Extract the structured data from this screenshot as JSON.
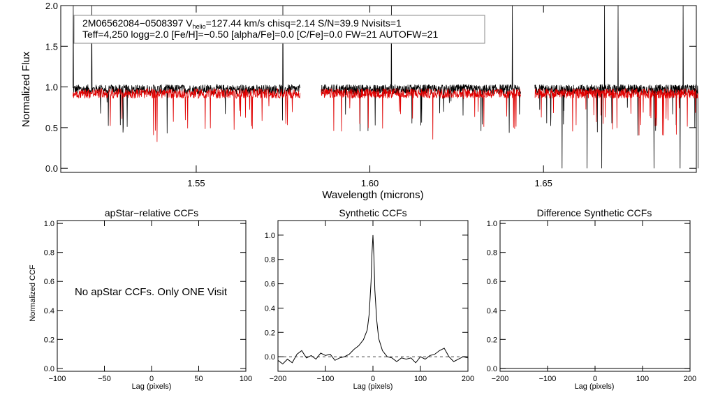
{
  "chart_data": [
    {
      "type": "line",
      "xlabel": "Wavelength (microns)",
      "ylabel": "Normalized Flux",
      "xlim": [
        1.511,
        1.694
      ],
      "ylim": [
        -0.05,
        2.0
      ],
      "x_ticks": [
        "1.55",
        "1.60",
        "1.65"
      ],
      "x_tick_values": [
        1.55,
        1.6,
        1.65
      ],
      "y_ticks": [
        "0.0",
        "0.5",
        "1.0",
        "1.5",
        "2.0"
      ],
      "y_tick_values": [
        0.0,
        0.5,
        1.0,
        1.5,
        2.0
      ],
      "info": {
        "line1_a": "2M06562084−0508397  V",
        "line1_sub": "helio",
        "line1_b": "=127.44 km/s  chisq=2.14  S/N=39.9  Nvisits=1",
        "line2": "Teff=4,250 logg=2.0 [Fe/H]=−0.50 [alpha/Fe]=0.0 [C/Fe]=0.0 FW=21 AUTOFW=21"
      },
      "detectors": [
        [
          1.5145,
          1.58
        ],
        [
          1.586,
          1.6435
        ],
        [
          1.6475,
          1.6945
        ]
      ],
      "series": [
        {
          "color": "#000000",
          "level": 0.97
        },
        {
          "color": "#e00000",
          "level": 0.92
        }
      ]
    },
    {
      "type": "line",
      "title": "apStar−relative CCFs",
      "xlabel": "Lag (pixels)",
      "ylabel": "Normalized CCF",
      "xlim": [
        -100,
        100
      ],
      "ylim": [
        -0.02,
        1.02
      ],
      "x_ticks": [
        "−100",
        "−50",
        "0",
        "50",
        "100"
      ],
      "x_tick_values": [
        -100,
        -50,
        0,
        50,
        100
      ],
      "y_ticks": [
        "0.0",
        "0.2",
        "0.4",
        "0.6",
        "0.8",
        "1.0"
      ],
      "y_tick_values": [
        0.0,
        0.2,
        0.4,
        0.6,
        0.8,
        1.0
      ],
      "note": "No apStar CCFs.  Only ONE Visit"
    },
    {
      "type": "line",
      "title": "Synthetic CCFs",
      "xlabel": "Lag (pixels)",
      "xlim": [
        -200,
        200
      ],
      "ylim": [
        -0.12,
        1.12
      ],
      "x_ticks": [
        "−200",
        "−100",
        "0",
        "100",
        "200"
      ],
      "x_tick_values": [
        -200,
        -100,
        0,
        100,
        200
      ],
      "y_ticks": [
        "0.0",
        "0.2",
        "0.4",
        "0.6",
        "0.8",
        "1.0"
      ],
      "y_tick_values": [
        0.0,
        0.2,
        0.4,
        0.6,
        0.8,
        1.0
      ],
      "x": [
        -200,
        -190,
        -180,
        -170,
        -160,
        -150,
        -140,
        -130,
        -120,
        -110,
        -100,
        -90,
        -80,
        -70,
        -60,
        -50,
        -40,
        -30,
        -20,
        -12,
        -8,
        -4,
        -2,
        0,
        2,
        4,
        8,
        12,
        20,
        30,
        40,
        50,
        60,
        70,
        80,
        90,
        100,
        110,
        120,
        130,
        140,
        150,
        160,
        170,
        180,
        190,
        200
      ],
      "y": [
        -0.03,
        -0.06,
        -0.02,
        -0.05,
        0.02,
        0.05,
        -0.01,
        0.01,
        -0.02,
        0.03,
        0.01,
        0.02,
        -0.03,
        -0.01,
        0.0,
        0.02,
        0.06,
        0.09,
        0.14,
        0.22,
        0.35,
        0.62,
        0.85,
        1.0,
        0.82,
        0.55,
        0.3,
        0.15,
        0.05,
        0.0,
        -0.01,
        -0.04,
        -0.01,
        -0.02,
        -0.01,
        -0.05,
        0.0,
        -0.02,
        0.01,
        0.02,
        0.05,
        0.07,
        0.0,
        -0.04,
        -0.02,
        0.0,
        -0.01
      ],
      "zero_line": 0.0
    },
    {
      "type": "line",
      "title": "Difference Synthetic CCFs",
      "xlabel": "Lag (pixels)",
      "xlim": [
        -200,
        200
      ],
      "ylim": [
        -0.02,
        1.02
      ],
      "x_ticks": [
        "−200",
        "−100",
        "0",
        "100",
        "200"
      ],
      "x_tick_values": [
        -200,
        -100,
        0,
        100,
        200
      ],
      "y_ticks": [
        "0.0",
        "0.2",
        "0.4",
        "0.6",
        "0.8",
        "1.0"
      ],
      "y_tick_values": [
        0.0,
        0.2,
        0.4,
        0.6,
        0.8,
        1.0
      ],
      "x": [
        -200,
        200
      ],
      "y": [
        0.0,
        0.0
      ]
    }
  ]
}
